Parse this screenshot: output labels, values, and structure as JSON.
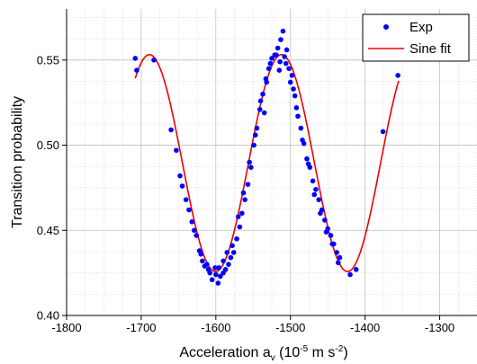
{
  "chart_data": {
    "type": "scatter",
    "xlabel": {
      "main": "Acceleration a",
      "sub": "v",
      "unit_open": " (10",
      "unit_exp1": "-5",
      "unit_mid": " m s",
      "unit_exp2": "-2",
      "unit_close": ")"
    },
    "ylabel": "Transition probability",
    "xlim": [
      -1800,
      -1250
    ],
    "ylim": [
      0.4,
      0.58
    ],
    "xticks": [
      -1800,
      -1700,
      -1600,
      -1500,
      -1400,
      -1300
    ],
    "yticks": [
      0.4,
      0.45,
      0.5,
      0.55
    ],
    "ytick_labels": [
      "0.40",
      "0.45",
      "0.50",
      "0.55"
    ],
    "grid": true,
    "legend_position": "top-right",
    "colors": {
      "exp": "#0000ff",
      "fit": "#ee0000",
      "grid": "#bfbfbf"
    },
    "series": [
      {
        "name": "Exp",
        "kind": "points",
        "points": [
          [
            -1708,
            0.551
          ],
          [
            -1706,
            0.544
          ],
          [
            -1683,
            0.55
          ],
          [
            -1660,
            0.509
          ],
          [
            -1653,
            0.497
          ],
          [
            -1648,
            0.482
          ],
          [
            -1645,
            0.476
          ],
          [
            -1640,
            0.468
          ],
          [
            -1636,
            0.462
          ],
          [
            -1632,
            0.455
          ],
          [
            -1629,
            0.45
          ],
          [
            -1626,
            0.447
          ],
          [
            -1622,
            0.438
          ],
          [
            -1618,
            0.432
          ],
          [
            -1615,
            0.429
          ],
          [
            -1612,
            0.43
          ],
          [
            -1608,
            0.425
          ],
          [
            -1605,
            0.421
          ],
          [
            -1601,
            0.428
          ],
          [
            -1597,
            0.419
          ],
          [
            -1594,
            0.423
          ],
          [
            -1590,
            0.425
          ],
          [
            -1587,
            0.427
          ],
          [
            -1583,
            0.43
          ],
          [
            -1580,
            0.434
          ],
          [
            -1576,
            0.437
          ],
          [
            -1572,
            0.445
          ],
          [
            -1568,
            0.452
          ],
          [
            -1565,
            0.46
          ],
          [
            -1561,
            0.468
          ],
          [
            -1557,
            0.477
          ],
          [
            -1553,
            0.487
          ],
          [
            -1549,
            0.5
          ],
          [
            -1545,
            0.51
          ],
          [
            -1541,
            0.521
          ],
          [
            -1537,
            0.53
          ],
          [
            -1533,
            0.539
          ],
          [
            -1529,
            0.545
          ],
          [
            -1525,
            0.551
          ],
          [
            -1521,
            0.553
          ],
          [
            -1517,
            0.557
          ],
          [
            -1513,
            0.562
          ],
          [
            -1510,
            0.567
          ],
          [
            -1506,
            0.548
          ],
          [
            -1502,
            0.545
          ],
          [
            -1498,
            0.541
          ],
          [
            -1494,
            0.529
          ],
          [
            -1490,
            0.517
          ],
          [
            -1486,
            0.51
          ],
          [
            -1482,
            0.501
          ],
          [
            -1478,
            0.492
          ],
          [
            -1474,
            0.487
          ],
          [
            -1470,
            0.479
          ],
          [
            -1466,
            0.474
          ],
          [
            -1462,
            0.468
          ],
          [
            -1458,
            0.462
          ],
          [
            -1454,
            0.456
          ],
          [
            -1450,
            0.451
          ],
          [
            -1446,
            0.447
          ],
          [
            -1442,
            0.442
          ],
          [
            -1438,
            0.437
          ],
          [
            -1434,
            0.434
          ],
          [
            -1420,
            0.424
          ],
          [
            -1412,
            0.427
          ],
          [
            -1376,
            0.508
          ],
          [
            -1356,
            0.541
          ],
          [
            -1590,
            0.432
          ],
          [
            -1585,
            0.437
          ],
          [
            -1578,
            0.441
          ],
          [
            -1570,
            0.458
          ],
          [
            -1563,
            0.472
          ],
          [
            -1555,
            0.49
          ],
          [
            -1547,
            0.506
          ],
          [
            -1540,
            0.526
          ],
          [
            -1532,
            0.537
          ],
          [
            -1527,
            0.548
          ],
          [
            -1519,
            0.553
          ],
          [
            -1514,
            0.549
          ],
          [
            -1508,
            0.552
          ],
          [
            -1500,
            0.537
          ],
          [
            -1492,
            0.522
          ],
          [
            -1484,
            0.503
          ],
          [
            -1476,
            0.489
          ],
          [
            -1468,
            0.471
          ],
          [
            -1460,
            0.46
          ],
          [
            -1452,
            0.449
          ],
          [
            -1444,
            0.442
          ],
          [
            -1436,
            0.431
          ],
          [
            -1600,
            0.424
          ],
          [
            -1596,
            0.428
          ],
          [
            -1610,
            0.427
          ],
          [
            -1620,
            0.436
          ],
          [
            -1535,
            0.519
          ],
          [
            -1515,
            0.544
          ],
          [
            -1505,
            0.556
          ],
          [
            -1496,
            0.533
          ]
        ]
      },
      {
        "name": "Sine fit",
        "kind": "curve",
        "model": {
          "offset": 0.4895,
          "amplitude": 0.0637,
          "period": 177,
          "peak_x": -1512
        }
      }
    ],
    "x_range_fit": [
      -1708,
      -1355
    ]
  }
}
